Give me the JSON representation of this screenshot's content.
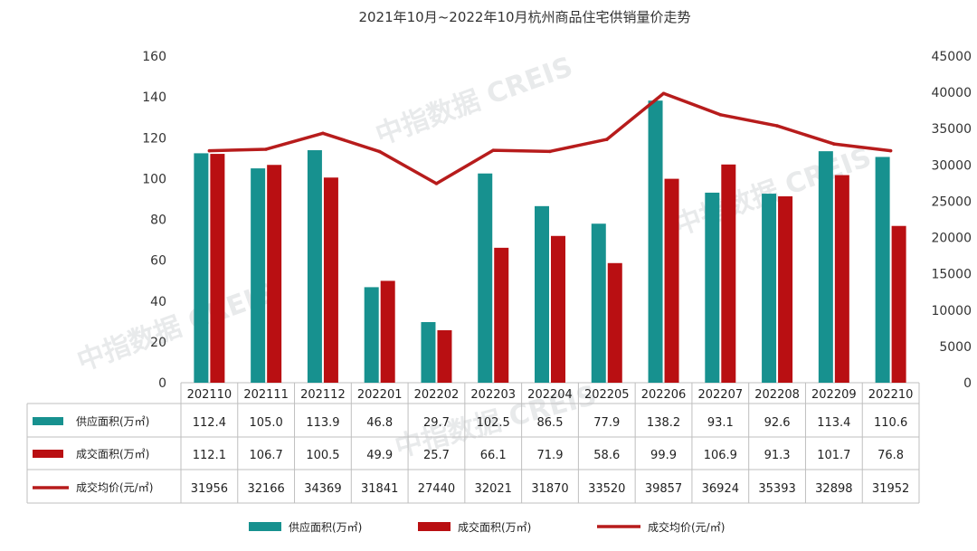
{
  "colors": {
    "supply": "#17918f",
    "deal_area": "#b90f12",
    "price": "#b71c1c",
    "grid": "#bfbfbf",
    "watermark": "#d7d9dc"
  },
  "watermarks": [
    "中指数据 CREIS",
    "中指数据 CREIS",
    "中指数据 CREIS",
    "中指数据 CREIS"
  ],
  "chart_data": {
    "type": "bar",
    "title": "2021年10月~2022年10月杭州商品住宅供销量价走势",
    "categories": [
      "202110",
      "202111",
      "202112",
      "202201",
      "202202",
      "202203",
      "202204",
      "202205",
      "202206",
      "202207",
      "202208",
      "202209",
      "202210"
    ],
    "y_left": {
      "min": 0,
      "max": 160,
      "ticks": [
        0,
        20,
        40,
        60,
        80,
        100,
        120,
        140,
        160
      ]
    },
    "y_right": {
      "min": 0,
      "max": 45000,
      "ticks": [
        0,
        5000,
        10000,
        15000,
        20000,
        25000,
        30000,
        35000,
        40000,
        45000
      ]
    },
    "series": [
      {
        "name": "供应面积(万㎡)",
        "type": "bar",
        "axis": "left",
        "values": [
          112.4,
          105.0,
          113.9,
          46.8,
          29.7,
          102.5,
          86.5,
          77.9,
          138.2,
          93.1,
          92.6,
          113.4,
          110.6
        ],
        "labels": [
          "112.4",
          "105.0",
          "113.9",
          "46.8",
          "29.7",
          "102.5",
          "86.5",
          "77.9",
          "138.2",
          "93.1",
          "92.6",
          "113.4",
          "110.6"
        ]
      },
      {
        "name": "成交面积(万㎡)",
        "type": "bar",
        "axis": "left",
        "values": [
          112.1,
          106.7,
          100.5,
          49.9,
          25.7,
          66.1,
          71.9,
          58.6,
          99.9,
          106.9,
          91.3,
          101.7,
          76.8
        ],
        "labels": [
          "112.1",
          "106.7",
          "100.5",
          "49.9",
          "25.7",
          "66.1",
          "71.9",
          "58.6",
          "99.9",
          "106.9",
          "91.3",
          "101.7",
          "76.8"
        ]
      },
      {
        "name": "成交均价(元/㎡)",
        "type": "line",
        "axis": "right",
        "values": [
          31956,
          32166,
          34369,
          31841,
          27440,
          32021,
          31870,
          33520,
          39857,
          36924,
          35393,
          32898,
          31952
        ],
        "labels": [
          "31956",
          "32166",
          "34369",
          "31841",
          "27440",
          "32021",
          "31870",
          "33520",
          "39857",
          "36924",
          "35393",
          "32898",
          "31952"
        ]
      }
    ],
    "table": {
      "row_labels": [
        "供应面积(万㎡)",
        "成交面积(万㎡)",
        "成交均价(元/㎡)"
      ]
    },
    "legend": {
      "position": "bottom",
      "items": [
        "供应面积(万㎡)",
        "成交面积(万㎡)",
        "成交均价(元/㎡)"
      ]
    },
    "grid": false
  }
}
